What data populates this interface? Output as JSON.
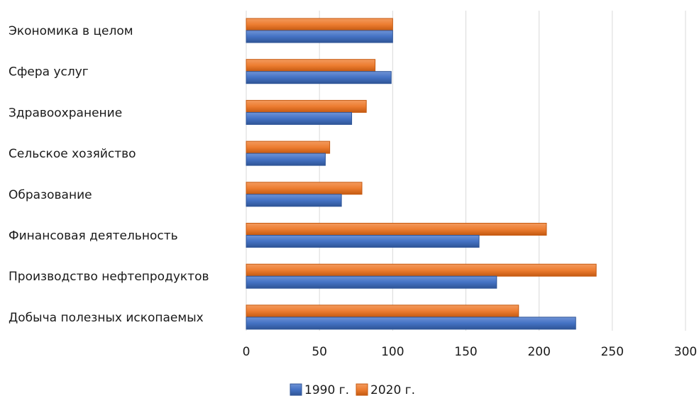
{
  "chart_data": {
    "type": "bar",
    "orientation": "horizontal",
    "categories": [
      "Экономика в целом",
      "Сфера услуг",
      "Здравоохранение",
      "Сельское хозяйство",
      "Образование",
      "Финансовая деятельность",
      "Производство нефтепродуктов",
      "Добыча полезных ископаемых"
    ],
    "series": [
      {
        "name": "1990 г.",
        "color": "#4472c4",
        "values": [
          100,
          99,
          72,
          54,
          65,
          159,
          171,
          225
        ]
      },
      {
        "name": "2020 г.",
        "color": "#ed7d31",
        "values": [
          100,
          88,
          82,
          57,
          79,
          205,
          239,
          186
        ]
      }
    ],
    "xlim": [
      0,
      300
    ],
    "xticks": [
      "0",
      "50",
      "100",
      "150",
      "200",
      "250",
      "300"
    ],
    "grid": true,
    "legend_position": "bottom"
  }
}
